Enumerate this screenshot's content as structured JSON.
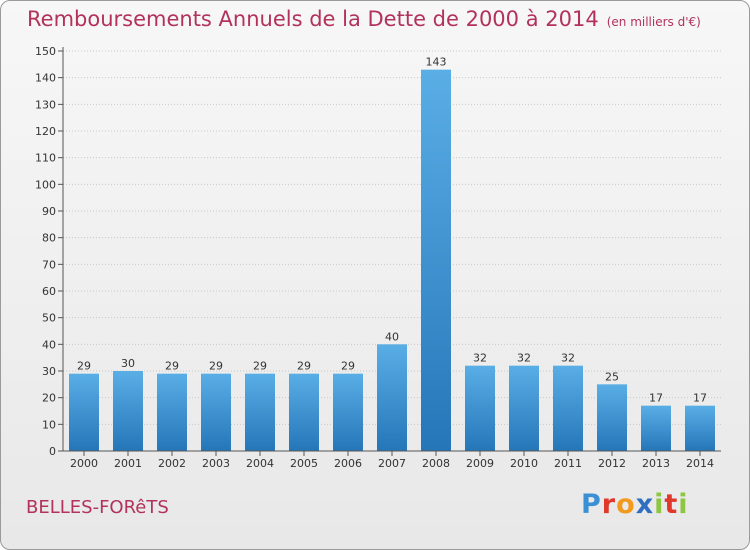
{
  "chart_data": {
    "type": "bar",
    "title": "Remboursements Annuels de la Dette de 2000 à 2014",
    "unit_label": "(en milliers d'€)",
    "categories": [
      "2000",
      "2001",
      "2002",
      "2003",
      "2004",
      "2005",
      "2006",
      "2007",
      "2008",
      "2009",
      "2010",
      "2011",
      "2012",
      "2013",
      "2014"
    ],
    "values": [
      29,
      30,
      29,
      29,
      29,
      29,
      29,
      40,
      143,
      32,
      32,
      32,
      25,
      17,
      17
    ],
    "ylim": [
      0,
      150
    ],
    "yticks": [
      0,
      10,
      20,
      30,
      40,
      50,
      60,
      70,
      80,
      90,
      100,
      110,
      120,
      130,
      140,
      150
    ],
    "xlabel": "",
    "ylabel": "",
    "grid": true,
    "colors": {
      "bar_light": "#5aaee6",
      "bar_dark": "#2576b8",
      "grid": "#c8c8c8",
      "title": "#b2325b"
    }
  },
  "commune": "BELLES-FORêTS",
  "logo": {
    "letters": [
      "P",
      "r",
      "o",
      "x",
      "i",
      "t",
      "i"
    ],
    "colors": [
      "#3b8fd4",
      "#e0382b",
      "#f19a1e",
      "#2f6fc2",
      "#8dc63f",
      "#e0382b",
      "#8dc63f"
    ]
  }
}
